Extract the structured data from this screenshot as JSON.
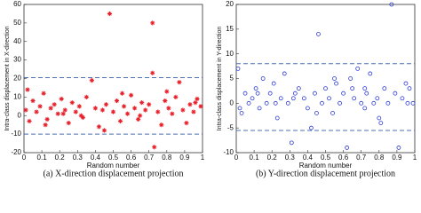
{
  "chart_data": [
    {
      "type": "scatter",
      "caption": "(a) X-direction displacement projection",
      "xlabel": "Random number",
      "ylabel": "Intra-class displacement in X-direction",
      "xlim": [
        0,
        1
      ],
      "ylim": [
        -20,
        60
      ],
      "xticks": [
        0,
        0.1,
        0.2,
        0.3,
        0.4,
        0.5,
        0.6,
        0.7,
        0.8,
        0.9,
        1
      ],
      "yticks": [
        -20,
        -10,
        0,
        10,
        20,
        30,
        40,
        50,
        60
      ],
      "marker": "star",
      "color": "#e8202a",
      "reference_lines": [
        20.5,
        -10
      ],
      "reference_color": "#4a6fb5",
      "x": [
        0.01,
        0.03,
        0.05,
        0.07,
        0.09,
        0.11,
        0.13,
        0.15,
        0.17,
        0.19,
        0.21,
        0.23,
        0.25,
        0.27,
        0.29,
        0.31,
        0.33,
        0.35,
        0.38,
        0.4,
        0.42,
        0.44,
        0.46,
        0.48,
        0.5,
        0.52,
        0.54,
        0.56,
        0.58,
        0.6,
        0.62,
        0.64,
        0.66,
        0.68,
        0.7,
        0.72,
        0.72,
        0.73,
        0.75,
        0.77,
        0.79,
        0.81,
        0.83,
        0.85,
        0.87,
        0.89,
        0.91,
        0.93,
        0.95,
        0.97,
        0.99,
        0.02,
        0.12,
        0.22,
        0.32,
        0.45,
        0.55,
        0.65,
        0.8,
        0.96
      ],
      "values": [
        3,
        -3,
        8,
        2,
        5,
        12,
        -2,
        4,
        6,
        1,
        9,
        3,
        -4,
        7,
        2,
        5,
        -1,
        10,
        19,
        4,
        -6,
        3,
        6,
        55,
        2,
        8,
        -3,
        5,
        1,
        11,
        4,
        -2,
        7,
        3,
        6,
        50,
        23,
        -17,
        2,
        -5,
        8,
        4,
        1,
        10,
        18,
        3,
        -4,
        6,
        2,
        9,
        5,
        14,
        -5,
        1,
        0,
        -8,
        12,
        0,
        13,
        7
      ]
    },
    {
      "type": "scatter",
      "caption": "(b) Y-direction displacement projection",
      "xlabel": "Random number",
      "ylabel": "Intra-class displacement in Y-direction",
      "xlim": [
        0,
        1
      ],
      "ylim": [
        -10,
        20
      ],
      "xticks": [
        0,
        0.1,
        0.2,
        0.3,
        0.4,
        0.5,
        0.6,
        0.7,
        0.8,
        0.9,
        1
      ],
      "yticks": [
        -10,
        -5,
        0,
        5,
        10,
        15,
        20
      ],
      "marker": "circle",
      "color": "#2b3bd6",
      "reference_lines": [
        8,
        -5.5
      ],
      "reference_color": "#4a6fb5",
      "x": [
        0.01,
        0.03,
        0.05,
        0.07,
        0.09,
        0.11,
        0.13,
        0.15,
        0.17,
        0.19,
        0.21,
        0.23,
        0.25,
        0.27,
        0.29,
        0.31,
        0.33,
        0.35,
        0.38,
        0.4,
        0.42,
        0.44,
        0.46,
        0.48,
        0.5,
        0.52,
        0.54,
        0.56,
        0.58,
        0.6,
        0.62,
        0.64,
        0.66,
        0.68,
        0.7,
        0.72,
        0.72,
        0.73,
        0.75,
        0.77,
        0.79,
        0.81,
        0.83,
        0.85,
        0.87,
        0.89,
        0.91,
        0.93,
        0.95,
        0.97,
        0.99,
        0.02,
        0.12,
        0.22,
        0.32,
        0.45,
        0.55,
        0.65,
        0.8,
        0.96
      ],
      "values": [
        7,
        -2,
        2,
        0,
        1,
        3,
        -1,
        5,
        0,
        2,
        4,
        -3,
        1,
        6,
        0,
        -8,
        2,
        3,
        1,
        -1,
        -5,
        2,
        14,
        0,
        3,
        1,
        -2,
        4,
        0,
        2,
        -9,
        5,
        1,
        7,
        0,
        3,
        -1,
        2,
        6,
        0,
        1,
        -4,
        3,
        0,
        20,
        2,
        -9,
        1,
        4,
        3,
        0,
        -1,
        2,
        0,
        1,
        -2,
        5,
        3,
        -3,
        0
      ]
    }
  ]
}
